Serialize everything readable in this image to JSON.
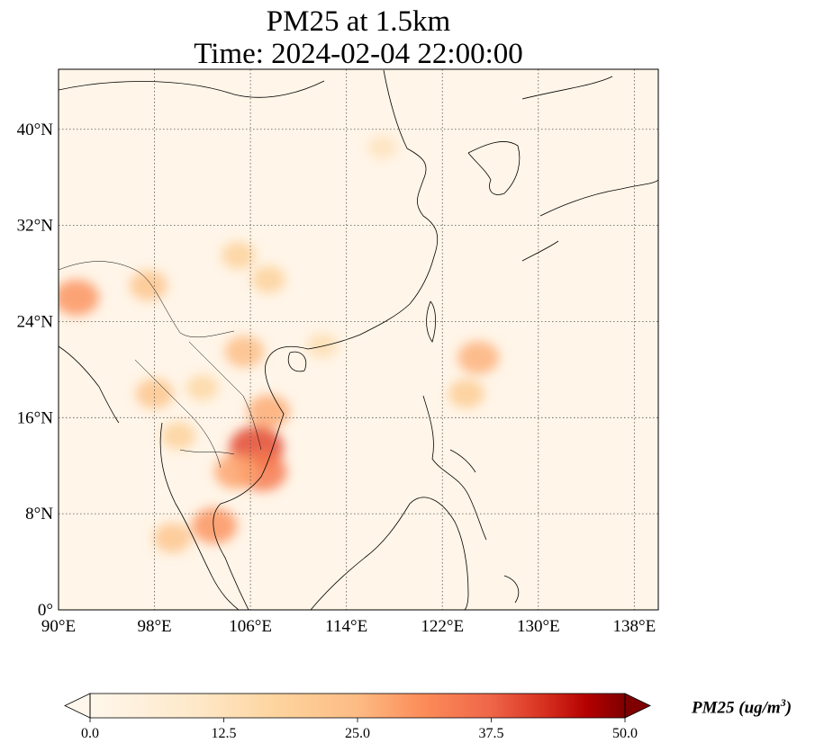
{
  "title_line1": "PM25 at 1.5km",
  "title_line2": "Time: 2024-02-04 22:00:00",
  "map": {
    "lon_range": [
      90,
      140
    ],
    "lat_range": [
      0,
      45
    ],
    "x_ticks": [
      {
        "value": 90,
        "label": "90°E"
      },
      {
        "value": 98,
        "label": "98°E"
      },
      {
        "value": 106,
        "label": "106°E"
      },
      {
        "value": 114,
        "label": "114°E"
      },
      {
        "value": 122,
        "label": "122°E"
      },
      {
        "value": 130,
        "label": "130°E"
      },
      {
        "value": 138,
        "label": "138°E"
      }
    ],
    "y_ticks": [
      {
        "value": 0,
        "label": "0°"
      },
      {
        "value": 8,
        "label": "8°N"
      },
      {
        "value": 16,
        "label": "16°N"
      },
      {
        "value": 24,
        "label": "24°N"
      },
      {
        "value": 32,
        "label": "32°N"
      },
      {
        "value": 40,
        "label": "40°N"
      }
    ],
    "gridlines": true,
    "background_color": "#fff5e8"
  },
  "colorbar": {
    "label_main": "PM25 (ug/m",
    "label_sup": "3",
    "label_end": ")",
    "min": 0,
    "max": 50,
    "extend": "both",
    "cmap": "OrRd",
    "ticks": [
      {
        "value": 0,
        "label": "0.0"
      },
      {
        "value": 12.5,
        "label": "12.5"
      },
      {
        "value": 25,
        "label": "25.0"
      },
      {
        "value": 37.5,
        "label": "37.5"
      },
      {
        "value": 50,
        "label": "50.0"
      }
    ]
  },
  "hotspots": [
    {
      "lon": 91.5,
      "lat": 26.0,
      "value": 30
    },
    {
      "lon": 97.5,
      "lat": 27.0,
      "value": 22
    },
    {
      "lon": 98.0,
      "lat": 18.0,
      "value": 22
    },
    {
      "lon": 105.5,
      "lat": 21.5,
      "value": 24
    },
    {
      "lon": 107.5,
      "lat": 16.5,
      "value": 27
    },
    {
      "lon": 106.5,
      "lat": 13.5,
      "value": 40
    },
    {
      "lon": 107.0,
      "lat": 11.5,
      "value": 34
    },
    {
      "lon": 104.8,
      "lat": 11.5,
      "value": 28
    },
    {
      "lon": 103.0,
      "lat": 7.0,
      "value": 30
    },
    {
      "lon": 99.5,
      "lat": 6.0,
      "value": 22
    },
    {
      "lon": 105.0,
      "lat": 29.5,
      "value": 18
    },
    {
      "lon": 107.5,
      "lat": 27.5,
      "value": 18
    },
    {
      "lon": 125.0,
      "lat": 21.0,
      "value": 26
    },
    {
      "lon": 124.0,
      "lat": 18.0,
      "value": 20
    },
    {
      "lon": 112.0,
      "lat": 22.0,
      "value": 14
    },
    {
      "lon": 117.0,
      "lat": 38.5,
      "value": 12
    },
    {
      "lon": 100.0,
      "lat": 14.5,
      "value": 18
    },
    {
      "lon": 102.0,
      "lat": 18.5,
      "value": 16
    }
  ]
}
